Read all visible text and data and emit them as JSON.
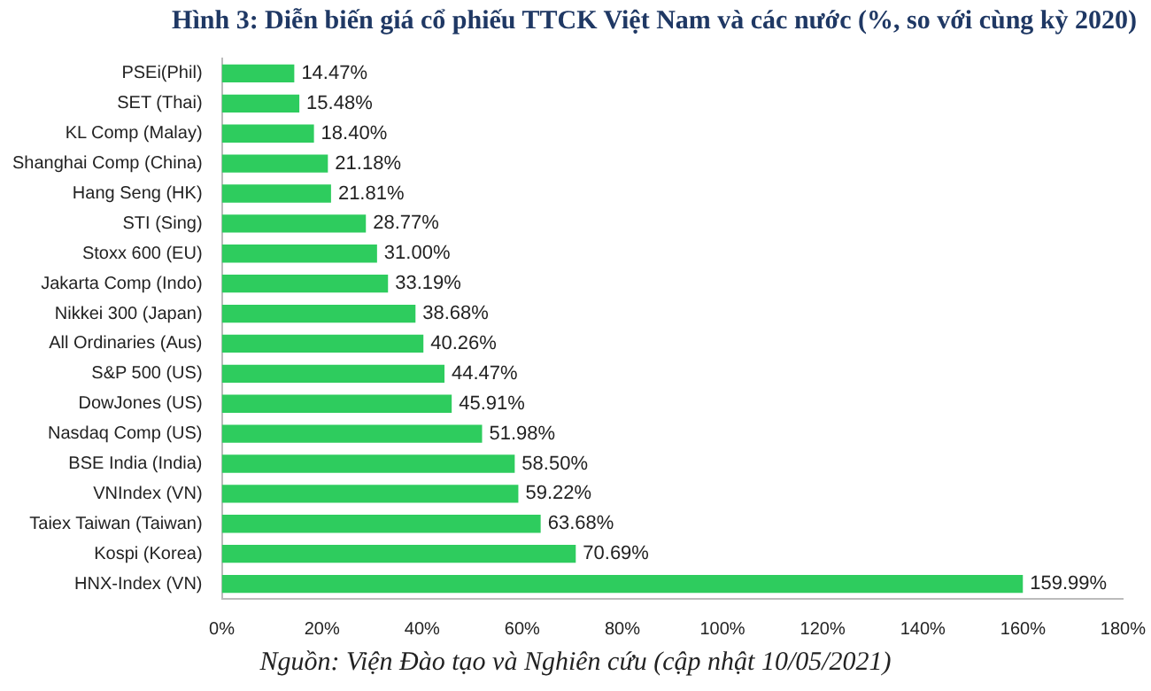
{
  "chart_data": {
    "type": "bar",
    "orientation": "horizontal",
    "title": "Hình 3: Diễn biến giá cổ phiếu TTCK Việt Nam và các nước (%, so với cùng kỳ 2020)",
    "categories": [
      "PSEi(Phil)",
      "SET (Thai)",
      "KL Comp (Malay)",
      "Shanghai Comp (China)",
      "Hang Seng (HK)",
      "STI (Sing)",
      "Stoxx 600 (EU)",
      "Jakarta Comp (Indo)",
      "Nikkei 300 (Japan)",
      "All Ordinaries (Aus)",
      "S&P 500 (US)",
      "DowJones (US)",
      "Nasdaq Comp (US)",
      "BSE India (India)",
      "VNIndex (VN)",
      "Taiex Taiwan (Taiwan)",
      "Kospi (Korea)",
      "HNX-Index (VN)"
    ],
    "values": [
      14.47,
      15.48,
      18.4,
      21.18,
      21.81,
      28.77,
      31.0,
      33.19,
      38.68,
      40.26,
      44.47,
      45.91,
      51.98,
      58.5,
      59.22,
      63.68,
      70.69,
      159.99
    ],
    "value_labels": [
      "14.47%",
      "15.48%",
      "18.40%",
      "21.18%",
      "21.81%",
      "28.77%",
      "31.00%",
      "33.19%",
      "38.68%",
      "40.26%",
      "44.47%",
      "45.91%",
      "51.98%",
      "58.50%",
      "59.22%",
      "63.68%",
      "70.69%",
      "159.99%"
    ],
    "color": "#2ecc5e",
    "xlim": [
      0,
      180
    ],
    "xticks": [
      {
        "value": 0,
        "label": "0%"
      },
      {
        "value": 20,
        "label": "20%"
      },
      {
        "value": 40,
        "label": "40%"
      },
      {
        "value": 60,
        "label": "60%"
      },
      {
        "value": 80,
        "label": "80%"
      },
      {
        "value": 100,
        "label": "100%"
      },
      {
        "value": 120,
        "label": "120%"
      },
      {
        "value": 140,
        "label": "140%"
      },
      {
        "value": 160,
        "label": "160%"
      },
      {
        "value": 180,
        "label": "180%"
      }
    ],
    "grid": false,
    "legend": false,
    "annotations": [
      "Nguồn: Viện Đào tạo và Nghiên cứu (cập nhật 10/05/2021)"
    ]
  }
}
